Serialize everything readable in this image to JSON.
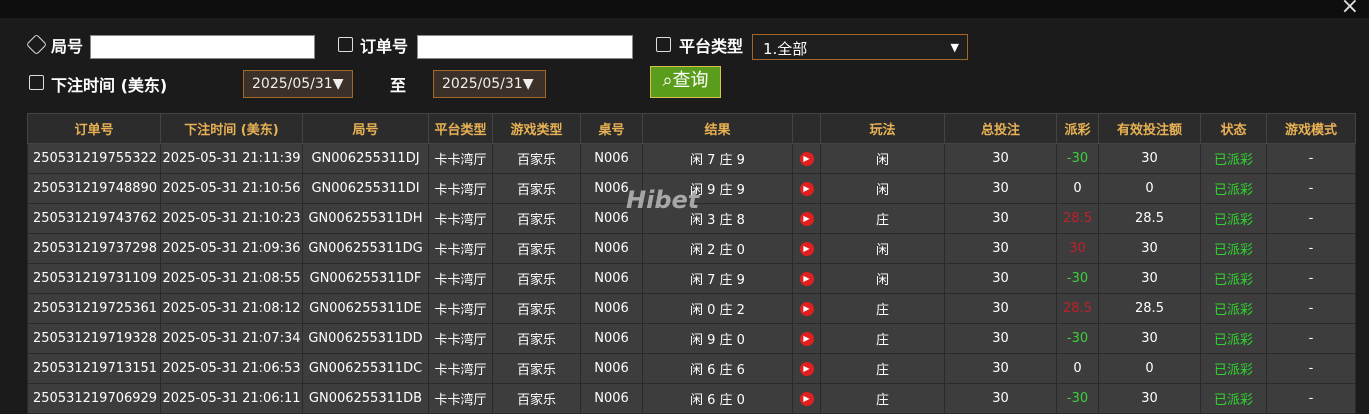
{
  "filters": {
    "round_label": "局号",
    "order_label": "订单号",
    "platform_label": "平台类型",
    "platform_value": "1.全部",
    "time_label": "下注时间 (美东)",
    "date_from": "2025/05/31",
    "to_label": "至",
    "date_to": "2025/05/31",
    "search_button": "查询"
  },
  "watermark": "Hibet",
  "table": {
    "headers": [
      "订单号",
      "下注时间 (美东)",
      "局号",
      "平台类型",
      "游戏类型",
      "桌号",
      "结果",
      "玩法",
      "总投注",
      "派彩",
      "有效投注额",
      "状态",
      "游戏模式"
    ],
    "rows": [
      [
        "250531219755322",
        "2025-05-31 21:11:39",
        "GN006255311DJ",
        "卡卡湾厅",
        "百家乐",
        "N006",
        "闲 7 庄 9",
        "闲",
        30,
        -30,
        30,
        "已派彩",
        "-"
      ],
      [
        "250531219748890",
        "2025-05-31 21:10:56",
        "GN006255311DI",
        "卡卡湾厅",
        "百家乐",
        "N006",
        "闲 9 庄 9",
        "闲",
        30,
        0,
        0,
        "已派彩",
        "-"
      ],
      [
        "250531219743762",
        "2025-05-31 21:10:23",
        "GN006255311DH",
        "卡卡湾厅",
        "百家乐",
        "N006",
        "闲 3 庄 8",
        "庄",
        30,
        28.5,
        28.5,
        "已派彩",
        "-"
      ],
      [
        "250531219737298",
        "2025-05-31 21:09:36",
        "GN006255311DG",
        "卡卡湾厅",
        "百家乐",
        "N006",
        "闲 2 庄 0",
        "闲",
        30,
        30,
        30,
        "已派彩",
        "-"
      ],
      [
        "250531219731109",
        "2025-05-31 21:08:55",
        "GN006255311DF",
        "卡卡湾厅",
        "百家乐",
        "N006",
        "闲 7 庄 9",
        "闲",
        30,
        -30,
        30,
        "已派彩",
        "-"
      ],
      [
        "250531219725361",
        "2025-05-31 21:08:12",
        "GN006255311DE",
        "卡卡湾厅",
        "百家乐",
        "N006",
        "闲 0 庄 2",
        "庄",
        30,
        28.5,
        28.5,
        "已派彩",
        "-"
      ],
      [
        "250531219719328",
        "2025-05-31 21:07:34",
        "GN006255311DD",
        "卡卡湾厅",
        "百家乐",
        "N006",
        "闲 9 庄 0",
        "庄",
        30,
        -30,
        30,
        "已派彩",
        "-"
      ],
      [
        "250531219713151",
        "2025-05-31 21:06:53",
        "GN006255311DC",
        "卡卡湾厅",
        "百家乐",
        "N006",
        "闲 6 庄 6",
        "庄",
        30,
        0,
        0,
        "已派彩",
        "-"
      ],
      [
        "250531219706929",
        "2025-05-31 21:06:11",
        "GN006255311DB",
        "卡卡湾厅",
        "百家乐",
        "N006",
        "闲 6 庄 0",
        "庄",
        30,
        -30,
        30,
        "已派彩",
        "-"
      ]
    ]
  }
}
